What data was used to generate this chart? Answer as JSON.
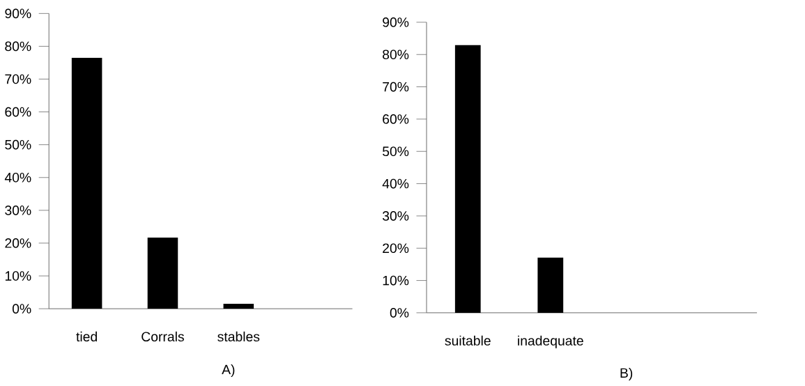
{
  "chart_data": [
    {
      "type": "bar",
      "categories": [
        "tied",
        "Corrals",
        "stables",
        null
      ],
      "values": [
        76.5,
        21.7,
        1.5,
        null
      ],
      "color": "#000000",
      "ylim": [
        0,
        90
      ],
      "yticks": [
        {
          "value": 0,
          "label": "0%"
        },
        {
          "value": 10,
          "label": "10%"
        },
        {
          "value": 20,
          "label": "20%"
        },
        {
          "value": 30,
          "label": "30%"
        },
        {
          "value": 40,
          "label": "40%"
        },
        {
          "value": 50,
          "label": "50%"
        },
        {
          "value": 60,
          "label": "60%"
        },
        {
          "value": 70,
          "label": "70%"
        },
        {
          "value": 80,
          "label": "80%"
        },
        {
          "value": 90,
          "label": "90%"
        }
      ],
      "annotations": [
        "A)"
      ]
    },
    {
      "type": "bar",
      "categories": [
        "suitable",
        "inadequate",
        null,
        null
      ],
      "values": [
        82.9,
        17.1,
        null,
        null
      ],
      "color": "#000000",
      "ylim": [
        0,
        90
      ],
      "yticks": [
        {
          "value": 0,
          "label": "0%"
        },
        {
          "value": 10,
          "label": "10%"
        },
        {
          "value": 20,
          "label": "20%"
        },
        {
          "value": 30,
          "label": "30%"
        },
        {
          "value": 40,
          "label": "40%"
        },
        {
          "value": 50,
          "label": "50%"
        },
        {
          "value": 60,
          "label": "60%"
        },
        {
          "value": 70,
          "label": "70%"
        },
        {
          "value": 80,
          "label": "80%"
        },
        {
          "value": 90,
          "label": "90%"
        }
      ],
      "annotations": [
        "B)"
      ]
    }
  ]
}
